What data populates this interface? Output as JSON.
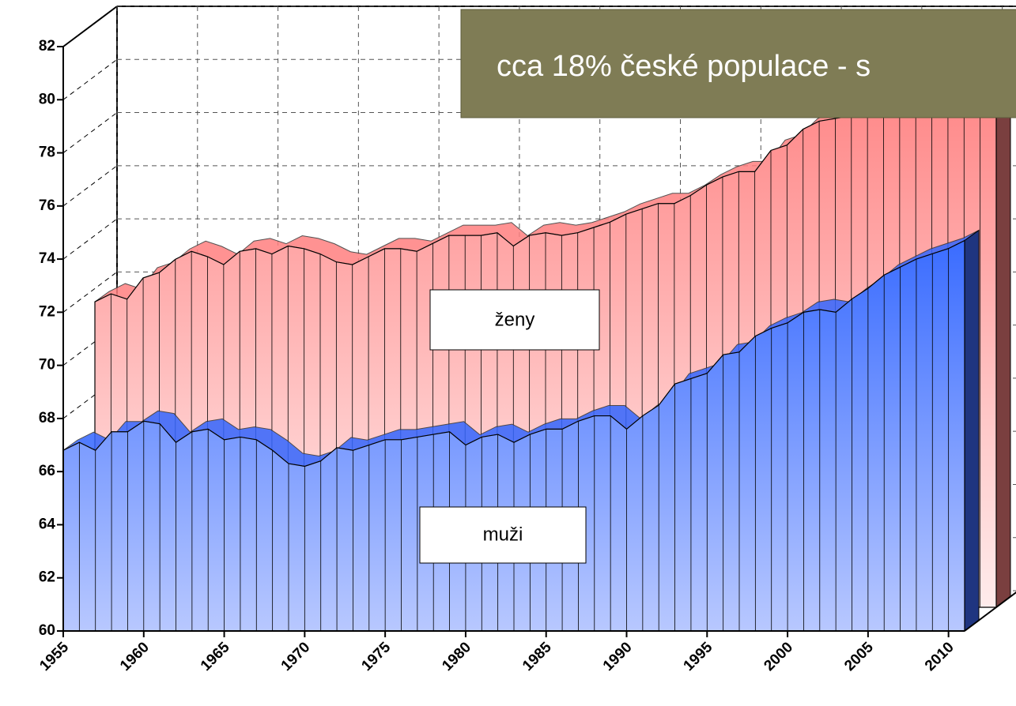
{
  "chart_data": {
    "type": "area3d",
    "annotation": "cca 18% české populace - s",
    "x": [
      1955,
      1956,
      1957,
      1958,
      1959,
      1960,
      1961,
      1962,
      1963,
      1964,
      1965,
      1966,
      1967,
      1968,
      1969,
      1970,
      1971,
      1972,
      1973,
      1974,
      1975,
      1976,
      1977,
      1978,
      1979,
      1980,
      1981,
      1982,
      1983,
      1984,
      1985,
      1986,
      1987,
      1988,
      1989,
      1990,
      1991,
      1992,
      1993,
      1994,
      1995,
      1996,
      1997,
      1998,
      1999,
      2000,
      2001,
      2002,
      2003,
      2004,
      2005,
      2006,
      2007,
      2008,
      2009,
      2010,
      2011
    ],
    "series": [
      {
        "name": "ženy",
        "color": "#ff8080",
        "values": [
          71.5,
          71.8,
          71.6,
          72.4,
          72.6,
          73.1,
          73.4,
          73.2,
          72.9,
          73.4,
          73.5,
          73.3,
          73.6,
          73.5,
          73.3,
          73.0,
          72.9,
          73.2,
          73.5,
          73.5,
          73.4,
          73.7,
          74.0,
          74.0,
          74.0,
          74.1,
          73.6,
          74.0,
          74.1,
          74.0,
          74.1,
          74.3,
          74.5,
          74.8,
          75.0,
          75.2,
          75.2,
          75.5,
          75.9,
          76.2,
          76.4,
          76.4,
          77.2,
          77.4,
          78.0,
          78.3,
          78.4,
          78.5,
          78.6,
          79.0,
          79.1,
          79.7,
          80.1,
          80.5,
          80.5,
          80.9,
          81.1
        ]
      },
      {
        "name": "muži",
        "color": "#3366ff",
        "values": [
          66.8,
          67.1,
          66.8,
          67.5,
          67.5,
          67.9,
          67.8,
          67.1,
          67.5,
          67.6,
          67.2,
          67.3,
          67.2,
          66.8,
          66.3,
          66.2,
          66.4,
          66.9,
          66.8,
          67.0,
          67.2,
          67.2,
          67.3,
          67.4,
          67.5,
          67.0,
          67.3,
          67.4,
          67.1,
          67.4,
          67.6,
          67.6,
          67.9,
          68.1,
          68.1,
          67.6,
          68.1,
          68.5,
          69.3,
          69.5,
          69.7,
          70.4,
          70.5,
          71.1,
          71.4,
          71.6,
          72.0,
          72.1,
          72.0,
          72.5,
          72.9,
          73.4,
          73.7,
          74.0,
          74.2,
          74.4,
          74.7
        ]
      }
    ],
    "xlim": [
      1955,
      2011
    ],
    "xticks": [
      1955,
      1960,
      1965,
      1970,
      1975,
      1980,
      1985,
      1990,
      1995,
      2000,
      2005,
      2010
    ],
    "ylim": [
      60,
      82
    ],
    "yticks": [
      60,
      62,
      64,
      66,
      68,
      70,
      72,
      74,
      76,
      78,
      80,
      82
    ],
    "grid": true
  }
}
